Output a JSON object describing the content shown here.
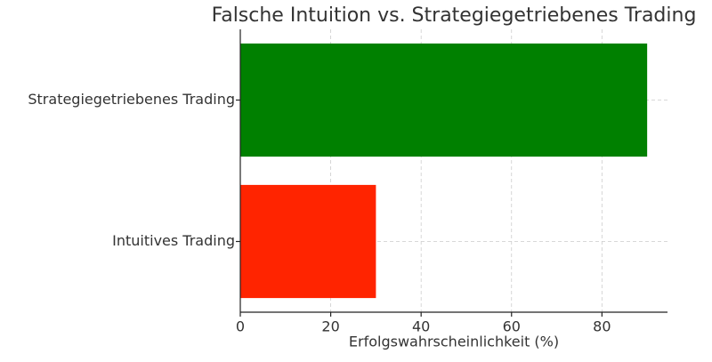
{
  "chart_data": {
    "type": "bar",
    "orientation": "horizontal",
    "title": "Falsche Intuition vs. Strategiegetriebenes Trading",
    "x_label": "Erfolgswahrscheinlichkeit (%)",
    "categories": [
      "Intuitives Trading",
      "Strategiegetriebenes Trading"
    ],
    "values": [
      30,
      90
    ],
    "colors": [
      "#ff2400",
      "#008000"
    ],
    "xlim": [
      0,
      94.5
    ],
    "xticks": [
      0,
      20,
      40,
      60,
      80
    ],
    "grid": true
  }
}
